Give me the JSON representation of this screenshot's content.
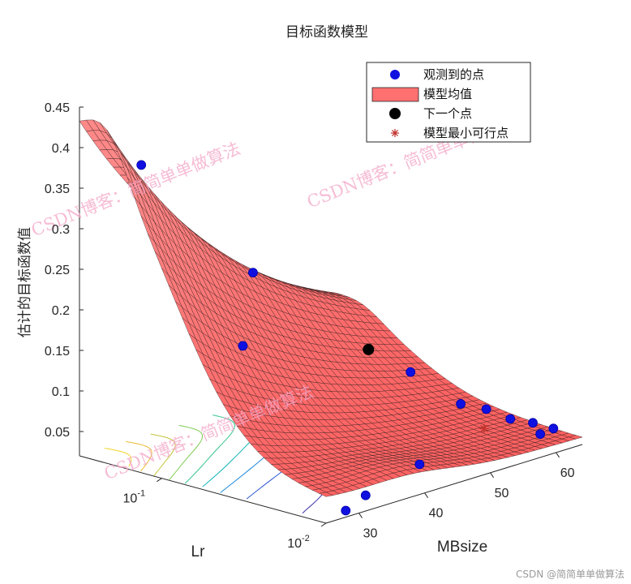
{
  "chart_data": {
    "type": "surface",
    "title": "目标函数模型",
    "xlabel": "MBsize",
    "ylabel": "Lr",
    "zlabel": "估计的目标函数值",
    "x_ticks": [
      "30",
      "40",
      "50",
      "60"
    ],
    "y_ticks": [
      {
        "base": "10",
        "exp": "-1"
      },
      {
        "base": "10",
        "exp": "-2"
      }
    ],
    "z_ticks": [
      "0.05",
      "0.1",
      "0.15",
      "0.2",
      "0.25",
      "0.3",
      "0.35",
      "0.4",
      "0.45"
    ],
    "zlim": [
      0.02,
      0.45
    ],
    "xlim": [
      25,
      64
    ],
    "ylim_log10": [
      -2,
      -0.5
    ],
    "surface_color": "#ff7070",
    "legend": [
      {
        "label": "观测到的点",
        "marker": "circle",
        "color": "#1010e0"
      },
      {
        "label": "模型均值",
        "marker": "patch",
        "color": "#ff7070"
      },
      {
        "label": "下一个点",
        "marker": "circle",
        "color": "#000000"
      },
      {
        "label": "模型最小可行点",
        "marker": "asterisk",
        "color": "#c0302a"
      }
    ],
    "observed_points": [
      {
        "mb": 27,
        "lr": 0.16,
        "z": 0.39
      },
      {
        "mb": 44,
        "lr": 0.16,
        "z": 0.215
      },
      {
        "mb": 33,
        "lr": 0.067,
        "z": 0.173
      },
      {
        "mb": 45,
        "lr": 0.017,
        "z": 0.03
      },
      {
        "mb": 33,
        "lr": 0.012,
        "z": 0.03
      },
      {
        "mb": 28,
        "lr": 0.01,
        "z": 0.028
      },
      {
        "mb": 59,
        "lr": 0.07,
        "z": 0.075
      },
      {
        "mb": 60,
        "lr": 0.038,
        "z": 0.048
      },
      {
        "mb": 63,
        "lr": 0.035,
        "z": 0.036
      },
      {
        "mb": 63,
        "lr": 0.025,
        "z": 0.032
      },
      {
        "mb": 64,
        "lr": 0.02,
        "z": 0.03
      },
      {
        "mb": 64,
        "lr": 0.015,
        "z": 0.03
      },
      {
        "mb": 62,
        "lr": 0.015,
        "z": 0.028
      }
    ],
    "next_point": {
      "mb": 57,
      "lr": 0.105,
      "z": 0.098
    },
    "min_feasible_point": {
      "mb": 59,
      "lr": 0.025,
      "z": 0.03
    }
  },
  "watermarks": [
    "CSDN博客：简简单单做算法",
    "CSDN博客：简简单单做算法",
    "CSDN博客：简简单单做算法"
  ],
  "credit": "CSDN @简简单单做算法"
}
